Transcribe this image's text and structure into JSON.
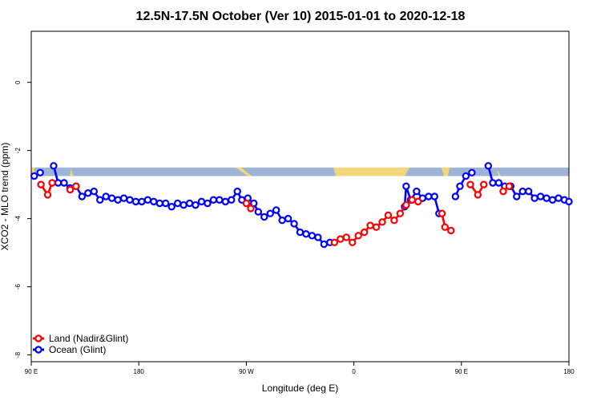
{
  "chart_data": {
    "type": "line",
    "title": "12.5N-17.5N October (Ver 10)   2015-01-01 to 2020-12-18",
    "xlabel": "Longitude (deg E)",
    "ylabel": "XCO2 - MLO trend (ppm)",
    "xlim": [
      90,
      450
    ],
    "ylim": [
      -8.2,
      1.5
    ],
    "grid": false,
    "legend_position": "bottom-left",
    "x_ticks": [
      {
        "value": 90,
        "label": "90 E"
      },
      {
        "value": 162,
        "label": "180"
      },
      {
        "value": 234,
        "label": "90 W"
      },
      {
        "value": 306,
        "label": "0"
      },
      {
        "value": 378,
        "label": "90 E"
      },
      {
        "value": 450,
        "label": "180"
      }
    ],
    "y_ticks": [
      {
        "value": 0,
        "label": "0"
      },
      {
        "value": -2,
        "label": "-2"
      },
      {
        "value": -4,
        "label": "-4"
      },
      {
        "value": -6,
        "label": "-6"
      },
      {
        "value": -8,
        "label": "-8"
      }
    ],
    "land_strip": {
      "y_top": -2.5,
      "y_bottom": -2.75,
      "ocean_color": "#9db4d6",
      "land_color": "#f4d67a"
    },
    "series": [
      {
        "name": "Land (Nadir&Glint)",
        "color": "#ff0000",
        "segments": [
          [
            [
              96.5,
              -3.0
            ],
            [
              101,
              -3.3
            ],
            [
              104,
              -2.95
            ]
          ],
          [
            [
              116,
              -3.15
            ],
            [
              120,
              -3.05
            ]
          ],
          [
            [
              234,
              -3.55
            ],
            [
              237,
              -3.7
            ]
          ],
          [
            [
              293,
              -4.7
            ],
            [
              297,
              -4.6
            ],
            [
              301,
              -4.55
            ],
            [
              305,
              -4.7
            ],
            [
              309,
              -4.5
            ],
            [
              313,
              -4.4
            ],
            [
              317,
              -4.2
            ],
            [
              321,
              -4.25
            ],
            [
              325,
              -4.1
            ],
            [
              329,
              -3.9
            ],
            [
              333,
              -4.05
            ],
            [
              337,
              -3.85
            ],
            [
              341,
              -3.6
            ],
            [
              345,
              -3.45
            ],
            [
              349,
              -3.5
            ]
          ],
          [
            [
              365,
              -3.85
            ],
            [
              367,
              -4.25
            ],
            [
              371,
              -4.35
            ]
          ],
          [
            [
              384,
              -3.0
            ],
            [
              389,
              -3.3
            ],
            [
              393,
              -3.0
            ]
          ],
          [
            [
              406,
              -3.2
            ],
            [
              410,
              -3.05
            ]
          ]
        ]
      },
      {
        "name": "Ocean (Glint)",
        "color": "#0000ff",
        "segments": [
          [
            [
              92,
              -2.75
            ],
            [
              96,
              -2.65
            ]
          ],
          [
            [
              105,
              -2.45
            ],
            [
              108,
              -2.95
            ],
            [
              112,
              -2.95
            ],
            [
              116,
              -3.1
            ],
            [
              120,
              -3.05
            ],
            [
              124,
              -3.35
            ],
            [
              128,
              -3.25
            ],
            [
              132,
              -3.2
            ],
            [
              136,
              -3.45
            ],
            [
              140,
              -3.35
            ],
            [
              144,
              -3.4
            ],
            [
              148,
              -3.45
            ],
            [
              152,
              -3.4
            ],
            [
              156,
              -3.45
            ],
            [
              160,
              -3.5
            ],
            [
              164,
              -3.5
            ],
            [
              168,
              -3.45
            ],
            [
              172,
              -3.5
            ],
            [
              176,
              -3.55
            ],
            [
              180,
              -3.55
            ],
            [
              184,
              -3.65
            ],
            [
              188,
              -3.55
            ],
            [
              192,
              -3.6
            ],
            [
              196,
              -3.55
            ],
            [
              200,
              -3.6
            ],
            [
              204,
              -3.5
            ],
            [
              208,
              -3.55
            ],
            [
              212,
              -3.45
            ],
            [
              216,
              -3.45
            ],
            [
              220,
              -3.5
            ],
            [
              224,
              -3.45
            ],
            [
              228,
              -3.2
            ],
            [
              231,
              -3.45
            ],
            [
              235,
              -3.4
            ],
            [
              239,
              -3.55
            ],
            [
              242,
              -3.8
            ],
            [
              246,
              -3.95
            ],
            [
              250,
              -3.85
            ],
            [
              254,
              -3.75
            ],
            [
              258,
              -4.05
            ],
            [
              262,
              -4.0
            ],
            [
              266,
              -4.15
            ],
            [
              270,
              -4.4
            ],
            [
              274,
              -4.45
            ],
            [
              278,
              -4.5
            ],
            [
              282,
              -4.55
            ],
            [
              286,
              -4.75
            ],
            [
              290,
              -4.7
            ]
          ],
          [
            [
              340,
              -3.65
            ],
            [
              341,
              -3.05
            ],
            [
              344,
              -3.45
            ],
            [
              348,
              -3.2
            ],
            [
              352,
              -3.4
            ],
            [
              356,
              -3.35
            ],
            [
              360,
              -3.35
            ],
            [
              363,
              -3.85
            ]
          ],
          [
            [
              374,
              -3.35
            ],
            [
              377,
              -3.05
            ],
            [
              381,
              -2.75
            ],
            [
              385,
              -2.65
            ]
          ],
          [
            [
              396,
              -2.45
            ],
            [
              399,
              -2.95
            ],
            [
              403,
              -2.95
            ],
            [
              407,
              -3.05
            ],
            [
              411,
              -3.05
            ],
            [
              415,
              -3.35
            ],
            [
              419,
              -3.2
            ],
            [
              423,
              -3.2
            ],
            [
              427,
              -3.4
            ],
            [
              431,
              -3.35
            ],
            [
              435,
              -3.4
            ],
            [
              439,
              -3.45
            ],
            [
              443,
              -3.4
            ],
            [
              447,
              -3.45
            ],
            [
              450,
              -3.5
            ]
          ]
        ]
      }
    ]
  }
}
